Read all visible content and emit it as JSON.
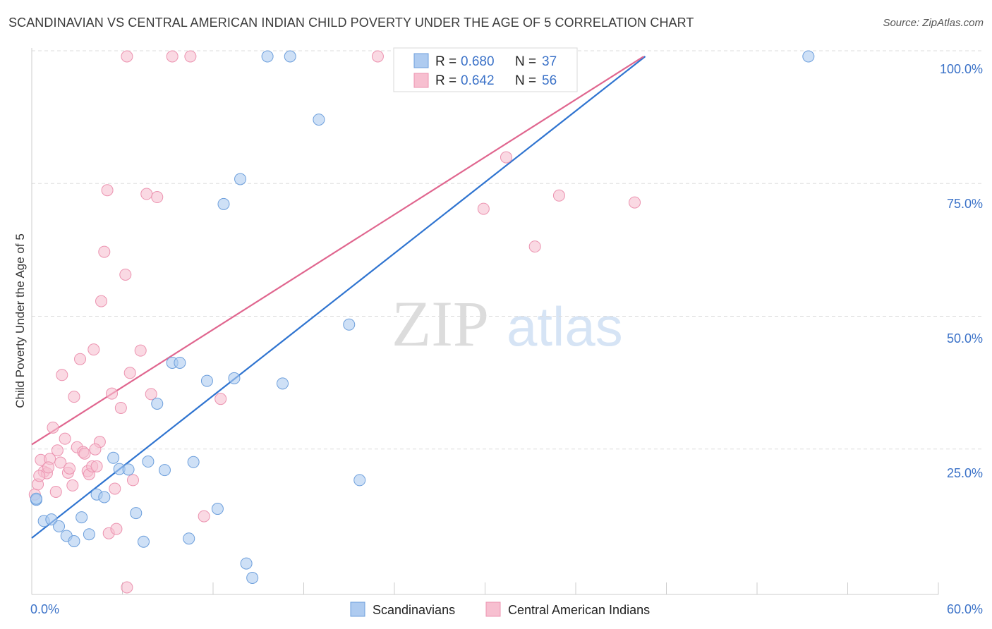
{
  "header": {
    "title": "SCANDINAVIAN VS CENTRAL AMERICAN INDIAN CHILD POVERTY UNDER THE AGE OF 5 CORRELATION CHART",
    "source": "Source: ZipAtlas.com"
  },
  "watermark": {
    "zip": "ZIP",
    "atlas": "atlas"
  },
  "colors": {
    "blue_fill": "#aecbf0",
    "blue_stroke": "#6d9fdc",
    "blue_line": "#2f74d0",
    "pink_fill": "#f7bfd0",
    "pink_stroke": "#ec93b0",
    "pink_line": "#e0668f",
    "value_text": "#3b72c8",
    "grid": "#dddddd"
  },
  "stats_legend": {
    "rows": [
      {
        "r_label": "R = ",
        "r_value": "0.680",
        "n_label": "N = ",
        "n_value": "37"
      },
      {
        "r_label": "R = ",
        "r_value": "0.642",
        "n_label": "N = ",
        "n_value": "56"
      }
    ]
  },
  "chart_data": {
    "type": "scatter",
    "title": "SCANDINAVIAN VS CENTRAL AMERICAN INDIAN CHILD POVERTY UNDER THE AGE OF 5 CORRELATION CHART",
    "xlabel": "",
    "ylabel": "Child Poverty Under the Age of 5",
    "xlim": [
      0,
      60
    ],
    "ylim": [
      0,
      100
    ],
    "x_tick_labels": [
      "0.0%",
      "60.0%"
    ],
    "y_ticks": [
      25,
      50,
      75,
      100
    ],
    "y_tick_labels": [
      "25.0%",
      "50.0%",
      "75.0%",
      "100.0%"
    ],
    "grid": true,
    "legend_position": "bottom",
    "series": [
      {
        "name": "Scandinavians",
        "color": "#aecbf0",
        "r": 0.68,
        "n": 37,
        "trend": {
          "x": [
            0,
            40.6
          ],
          "y": [
            9.3,
            100
          ]
        },
        "points": [
          {
            "x": 0.3,
            "y": 16.5
          },
          {
            "x": 0.8,
            "y": 12.5
          },
          {
            "x": 1.3,
            "y": 12.8
          },
          {
            "x": 1.8,
            "y": 11.5
          },
          {
            "x": 2.3,
            "y": 9.7
          },
          {
            "x": 2.8,
            "y": 8.7
          },
          {
            "x": 3.3,
            "y": 13.2
          },
          {
            "x": 3.8,
            "y": 10.0
          },
          {
            "x": 4.3,
            "y": 17.5
          },
          {
            "x": 4.8,
            "y": 17.0
          },
          {
            "x": 5.4,
            "y": 24.4
          },
          {
            "x": 5.8,
            "y": 22.3
          },
          {
            "x": 6.4,
            "y": 22.2
          },
          {
            "x": 6.9,
            "y": 14.0
          },
          {
            "x": 7.4,
            "y": 8.6
          },
          {
            "x": 7.7,
            "y": 23.7
          },
          {
            "x": 8.3,
            "y": 34.6
          },
          {
            "x": 8.8,
            "y": 22.1
          },
          {
            "x": 9.3,
            "y": 42.3
          },
          {
            "x": 9.8,
            "y": 42.3
          },
          {
            "x": 10.4,
            "y": 9.2
          },
          {
            "x": 10.7,
            "y": 23.6
          },
          {
            "x": 11.6,
            "y": 38.9
          },
          {
            "x": 12.3,
            "y": 14.8
          },
          {
            "x": 12.7,
            "y": 72.2
          },
          {
            "x": 13.4,
            "y": 39.4
          },
          {
            "x": 13.8,
            "y": 76.9
          },
          {
            "x": 14.2,
            "y": 4.5
          },
          {
            "x": 14.6,
            "y": 1.8
          },
          {
            "x": 15.6,
            "y": 100.0
          },
          {
            "x": 16.6,
            "y": 38.4
          },
          {
            "x": 17.1,
            "y": 100.0
          },
          {
            "x": 19.0,
            "y": 88.1
          },
          {
            "x": 21.0,
            "y": 49.5
          },
          {
            "x": 21.7,
            "y": 20.2
          },
          {
            "x": 51.4,
            "y": 100.0
          },
          {
            "x": 0.3,
            "y": 16.7
          }
        ]
      },
      {
        "name": "Central American Indians",
        "color": "#f7bfd0",
        "r": 0.642,
        "n": 56,
        "trend": {
          "x": [
            0,
            40.5
          ],
          "y": [
            26.9,
            100
          ]
        },
        "points": [
          {
            "x": 0.2,
            "y": 17.5
          },
          {
            "x": 0.4,
            "y": 19.4
          },
          {
            "x": 0.6,
            "y": 24.0
          },
          {
            "x": 0.8,
            "y": 21.8
          },
          {
            "x": 1.0,
            "y": 21.5
          },
          {
            "x": 1.2,
            "y": 24.2
          },
          {
            "x": 1.4,
            "y": 30.1
          },
          {
            "x": 1.6,
            "y": 18.0
          },
          {
            "x": 1.7,
            "y": 25.8
          },
          {
            "x": 1.9,
            "y": 23.5
          },
          {
            "x": 2.0,
            "y": 40.0
          },
          {
            "x": 2.2,
            "y": 28.0
          },
          {
            "x": 2.4,
            "y": 21.6
          },
          {
            "x": 2.5,
            "y": 22.4
          },
          {
            "x": 2.7,
            "y": 19.2
          },
          {
            "x": 2.8,
            "y": 35.9
          },
          {
            "x": 3.0,
            "y": 26.4
          },
          {
            "x": 3.2,
            "y": 43.0
          },
          {
            "x": 3.4,
            "y": 25.5
          },
          {
            "x": 3.5,
            "y": 25.2
          },
          {
            "x": 3.7,
            "y": 21.9
          },
          {
            "x": 3.8,
            "y": 21.3
          },
          {
            "x": 4.0,
            "y": 22.8
          },
          {
            "x": 4.1,
            "y": 44.8
          },
          {
            "x": 4.3,
            "y": 22.8
          },
          {
            "x": 4.5,
            "y": 27.4
          },
          {
            "x": 4.6,
            "y": 53.9
          },
          {
            "x": 4.8,
            "y": 63.2
          },
          {
            "x": 5.0,
            "y": 74.8
          },
          {
            "x": 5.1,
            "y": 10.2
          },
          {
            "x": 5.3,
            "y": 36.5
          },
          {
            "x": 5.5,
            "y": 18.6
          },
          {
            "x": 5.6,
            "y": 11.0
          },
          {
            "x": 5.9,
            "y": 33.8
          },
          {
            "x": 6.2,
            "y": 58.9
          },
          {
            "x": 6.3,
            "y": 0.0
          },
          {
            "x": 6.3,
            "y": 100.0
          },
          {
            "x": 6.5,
            "y": 40.4
          },
          {
            "x": 6.7,
            "y": 20.2
          },
          {
            "x": 7.2,
            "y": 44.6
          },
          {
            "x": 7.6,
            "y": 74.1
          },
          {
            "x": 7.9,
            "y": 36.4
          },
          {
            "x": 8.3,
            "y": 73.5
          },
          {
            "x": 9.3,
            "y": 100.0
          },
          {
            "x": 10.5,
            "y": 100.0
          },
          {
            "x": 11.4,
            "y": 13.4
          },
          {
            "x": 12.5,
            "y": 35.5
          },
          {
            "x": 22.9,
            "y": 100.0
          },
          {
            "x": 29.9,
            "y": 71.3
          },
          {
            "x": 31.4,
            "y": 81.0
          },
          {
            "x": 33.3,
            "y": 64.2
          },
          {
            "x": 34.9,
            "y": 73.8
          },
          {
            "x": 39.9,
            "y": 72.5
          },
          {
            "x": 4.2,
            "y": 26.0
          },
          {
            "x": 1.1,
            "y": 22.6
          },
          {
            "x": 0.5,
            "y": 21.0
          }
        ]
      }
    ]
  },
  "axes": {
    "ylabel": "Child Poverty Under the Age of 5",
    "x_min_label": "0.0%",
    "x_max_label": "60.0%",
    "y_labels": [
      "25.0%",
      "50.0%",
      "75.0%",
      "100.0%"
    ]
  },
  "bottom_legend": [
    {
      "label": "Scandinavians"
    },
    {
      "label": "Central American Indians"
    }
  ]
}
